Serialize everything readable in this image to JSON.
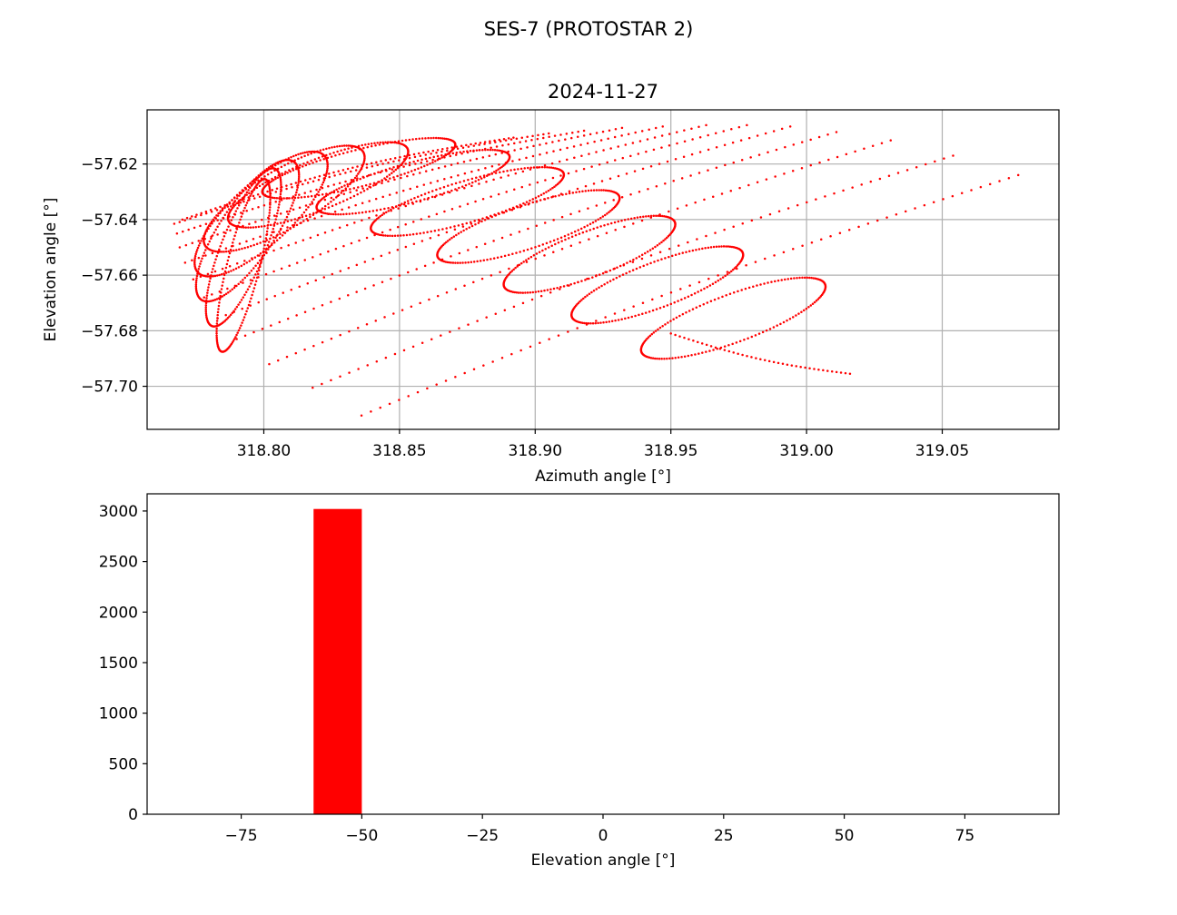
{
  "figure": {
    "suptitle": "SES-7 (PROTOSTAR 2)"
  },
  "colors": {
    "marker": "#ff0000",
    "bar": "#ff0000",
    "grid": "#b0b0b0",
    "axis": "#000000"
  },
  "chart_data": [
    {
      "type": "scatter",
      "title": "2024-11-27",
      "xlabel": "Azimuth angle [°]",
      "ylabel": "Elevation angle [°]",
      "xlim": [
        318.757,
        319.093
      ],
      "ylim": [
        -57.7155,
        -57.6005
      ],
      "grid": true,
      "xticks": [
        318.8,
        318.85,
        318.9,
        318.95,
        319.0,
        319.05
      ],
      "xtick_labels": [
        "318.80",
        "318.85",
        "318.90",
        "318.95",
        "319.00",
        "319.05"
      ],
      "yticks": [
        -57.62,
        -57.64,
        -57.66,
        -57.68,
        -57.7
      ],
      "ytick_labels": [
        "−57.62",
        "−57.64",
        "−57.66",
        "−57.68",
        "−57.70"
      ],
      "series": [
        {
          "marker": "point",
          "color": "#ff0000",
          "note_shape": "thirteen daily loops; each traces a closed ellipse of azimuth/elevation, successive loops shrink and drift toward lower azimuth",
          "loops": [
            {
              "x_min": 318.93,
              "x_max": 319.016,
              "y_min": -57.695,
              "y_max": -57.656
            },
            {
              "x_min": 318.905,
              "x_max": 318.985,
              "y_min": -57.682,
              "y_max": -57.645
            },
            {
              "x_min": 318.88,
              "x_max": 318.96,
              "y_min": -57.671,
              "y_max": -57.634
            },
            {
              "x_min": 318.855,
              "x_max": 318.94,
              "y_min": -57.66,
              "y_max": -57.625
            },
            {
              "x_min": 318.83,
              "x_max": 318.92,
              "y_min": -57.65,
              "y_max": -57.617
            },
            {
              "x_min": 318.81,
              "x_max": 318.9,
              "y_min": -57.642,
              "y_max": -57.611
            },
            {
              "x_min": 318.79,
              "x_max": 318.88,
              "y_min": -57.636,
              "y_max": -57.607
            },
            {
              "x_min": 318.778,
              "x_max": 318.862,
              "y_min": -57.648,
              "y_max": -57.607
            },
            {
              "x_min": 318.77,
              "x_max": 318.845,
              "y_min": -57.658,
              "y_max": -57.607
            },
            {
              "x_min": 318.768,
              "x_max": 318.83,
              "y_min": -57.668,
              "y_max": -57.608
            },
            {
              "x_min": 318.77,
              "x_max": 318.818,
              "y_min": -57.678,
              "y_max": -57.61
            },
            {
              "x_min": 318.775,
              "x_max": 318.81,
              "y_min": -57.688,
              "y_max": -57.612
            },
            {
              "x_min": 318.78,
              "x_max": 318.805,
              "y_min": -57.698,
              "y_max": -57.615
            }
          ]
        }
      ]
    },
    {
      "type": "bar",
      "title": "",
      "xlabel": "Elevation angle [°]",
      "ylabel": "",
      "xlim": [
        -94.5,
        94.5
      ],
      "ylim": [
        0,
        3170
      ],
      "grid": false,
      "xticks": [
        -75,
        -50,
        -25,
        0,
        25,
        50,
        75
      ],
      "xtick_labels": [
        "−75",
        "−50",
        "−25",
        "0",
        "25",
        "50",
        "75"
      ],
      "yticks": [
        0,
        500,
        1000,
        1500,
        2000,
        2500,
        3000
      ],
      "ytick_labels": [
        "0",
        "500",
        "1000",
        "1500",
        "2000",
        "2500",
        "3000"
      ],
      "bins": [
        {
          "start": -60,
          "end": -50,
          "value": 3020
        }
      ]
    }
  ]
}
